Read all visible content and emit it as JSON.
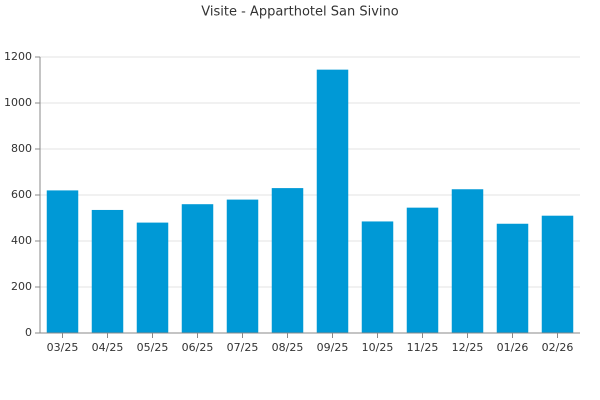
{
  "chart_data": {
    "type": "bar",
    "title": "Visite - Apparthotel San Sivino",
    "categories": [
      "03/25",
      "04/25",
      "05/25",
      "06/25",
      "07/25",
      "08/25",
      "09/25",
      "10/25",
      "11/25",
      "12/25",
      "01/26",
      "02/26"
    ],
    "values": [
      620,
      535,
      480,
      560,
      580,
      630,
      1145,
      485,
      545,
      625,
      475,
      510
    ],
    "color": "#0099d6",
    "ylim": [
      0,
      1200
    ],
    "yticks": [
      0,
      200,
      400,
      600,
      800,
      1000,
      1200
    ],
    "grid": true
  }
}
